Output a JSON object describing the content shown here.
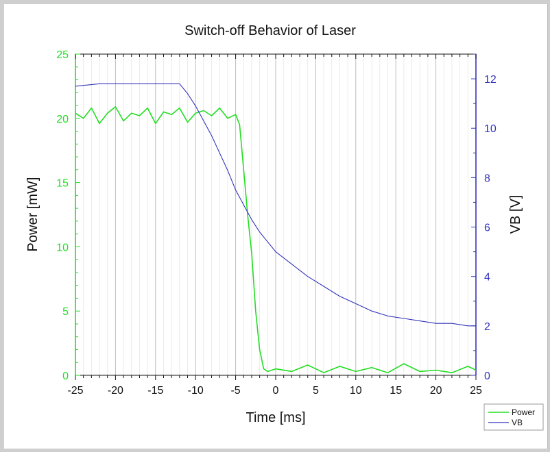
{
  "chart_data": {
    "type": "line",
    "title": "Switch-off Behavior of Laser",
    "xlabel": "Time [ms]",
    "ylabel_left": "Power [mW]",
    "ylabel_right": "VB [V]",
    "xlim": [
      -25,
      25
    ],
    "ylim_left": [
      0,
      25
    ],
    "ylim_right": [
      0,
      13
    ],
    "x_ticks": [
      "-25",
      "-20",
      "-15",
      "-10",
      "-5",
      "0",
      "5",
      "10",
      "15",
      "20",
      "25"
    ],
    "y_ticks_left": [
      "0",
      "5",
      "10",
      "15",
      "20",
      "25"
    ],
    "y_ticks_right": [
      "0",
      "2",
      "4",
      "6",
      "8",
      "10",
      "12"
    ],
    "grid": "vertical",
    "legend_position": "bottom-right",
    "series": [
      {
        "name": "Power",
        "axis": "left",
        "color": "#22dd22",
        "x": [
          -25,
          -24,
          -23,
          -22,
          -21,
          -20,
          -19,
          -18,
          -17,
          -16,
          -15,
          -14,
          -13,
          -12,
          -11,
          -10,
          -9,
          -8,
          -7,
          -6,
          -5,
          -4.5,
          -4,
          -3.5,
          -3,
          -2.5,
          -2,
          -1.5,
          -1,
          0,
          2,
          4,
          6,
          8,
          10,
          12,
          14,
          16,
          18,
          20,
          22,
          24,
          25
        ],
        "values": [
          20.4,
          20.0,
          20.8,
          19.6,
          20.4,
          20.9,
          19.8,
          20.4,
          20.2,
          20.8,
          19.6,
          20.5,
          20.3,
          20.8,
          19.7,
          20.4,
          20.6,
          20.2,
          20.8,
          20.0,
          20.3,
          19.5,
          16.0,
          12.5,
          9.5,
          5.0,
          2.0,
          0.5,
          0.3,
          0.5,
          0.3,
          0.8,
          0.2,
          0.7,
          0.3,
          0.6,
          0.2,
          0.9,
          0.3,
          0.4,
          0.2,
          0.7,
          0.4
        ]
      },
      {
        "name": "VB",
        "axis": "right",
        "color": "#3333bb",
        "x": [
          -25,
          -22,
          -19,
          -16,
          -13,
          -12,
          -11,
          -10,
          -9,
          -8,
          -7,
          -6,
          -5,
          -4,
          -3,
          -2,
          -1,
          0,
          2,
          4,
          6,
          8,
          10,
          12,
          14,
          16,
          18,
          20,
          22,
          24,
          25
        ],
        "values": [
          11.7,
          11.8,
          11.8,
          11.8,
          11.8,
          11.8,
          11.4,
          10.9,
          10.3,
          9.7,
          9.0,
          8.3,
          7.5,
          6.9,
          6.3,
          5.8,
          5.4,
          5.0,
          4.5,
          4.0,
          3.6,
          3.2,
          2.9,
          2.6,
          2.4,
          2.3,
          2.2,
          2.1,
          2.1,
          2.0,
          2.0
        ]
      }
    ]
  }
}
